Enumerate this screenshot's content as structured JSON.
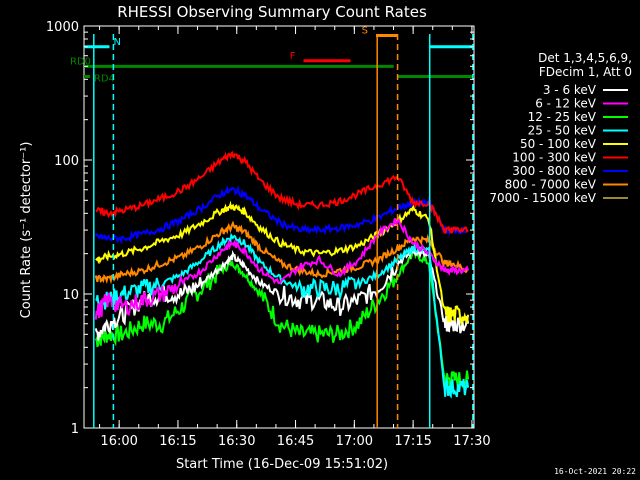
{
  "chart_data": {
    "type": "line",
    "title": "RHESSI Observing Summary Count Rates",
    "xlabel": "Start Time (16-Dec-09 15:51:02)",
    "ylabel": "Count Rate (s⁻¹ detector⁻¹)",
    "x_unit": "minutes after 15:51:02",
    "xlim": [
      0,
      99.5
    ],
    "ylim": [
      1,
      1000
    ],
    "yscale": "log",
    "x_ticks": [
      {
        "value": 8.97,
        "label": "16:00"
      },
      {
        "value": 23.97,
        "label": "16:15"
      },
      {
        "value": 38.97,
        "label": "16:30"
      },
      {
        "value": 53.97,
        "label": "16:45"
      },
      {
        "value": 68.97,
        "label": "17:00"
      },
      {
        "value": 83.97,
        "label": "17:15"
      },
      {
        "value": 98.97,
        "label": "17:30"
      }
    ],
    "y_ticks": [
      {
        "value": 1,
        "label": "1"
      },
      {
        "value": 10,
        "label": "10"
      },
      {
        "value": 100,
        "label": "100"
      },
      {
        "value": 1000,
        "label": "1000"
      }
    ],
    "legend_header": [
      "Det 1,3,4,5,6,9,",
      "FDecim 1, Att 0"
    ],
    "legend_placement": "right",
    "timestamp": "16-Oct-2021 20:22",
    "series": [
      {
        "name": "3 - 6 keV",
        "color": "#ffffff",
        "x": [
          3,
          6,
          10,
          15,
          20,
          25,
          30,
          35,
          38,
          41,
          45,
          50,
          55,
          60,
          65,
          70,
          75,
          80,
          84,
          88,
          92,
          94,
          98
        ],
        "values": [
          5,
          6,
          7,
          9,
          10,
          10,
          12,
          16,
          19,
          16,
          12,
          10,
          9,
          9,
          8,
          9,
          11,
          17,
          21,
          19,
          6,
          6,
          6
        ]
      },
      {
        "name": "6 - 12 keV",
        "color": "#ff00ff",
        "x": [
          3,
          6,
          10,
          15,
          20,
          25,
          30,
          35,
          38,
          41,
          45,
          50,
          55,
          60,
          65,
          70,
          75,
          80,
          84,
          88,
          92,
          94,
          98
        ],
        "values": [
          7,
          9,
          8,
          9,
          10,
          12,
          15,
          21,
          24,
          21,
          15,
          12,
          16,
          18,
          14,
          18,
          28,
          36,
          24,
          20,
          15,
          15,
          15
        ]
      },
      {
        "name": "12 - 25 keV",
        "color": "#00ff00",
        "x": [
          3,
          6,
          10,
          15,
          20,
          25,
          30,
          35,
          38,
          41,
          45,
          50,
          55,
          60,
          65,
          70,
          75,
          80,
          84,
          88,
          92,
          94,
          98
        ],
        "values": [
          4.5,
          5,
          5,
          6,
          6,
          8,
          11,
          15,
          17,
          14,
          10,
          6,
          5,
          5,
          5,
          6,
          9,
          14,
          20,
          17,
          2.3,
          2.3,
          2.3
        ]
      },
      {
        "name": "25 - 50 keV",
        "color": "#00ffff",
        "x": [
          3,
          6,
          10,
          15,
          20,
          25,
          30,
          35,
          38,
          41,
          45,
          50,
          55,
          60,
          65,
          70,
          75,
          80,
          84,
          88,
          92,
          94,
          98
        ],
        "values": [
          9,
          9,
          10,
          11,
          12,
          14,
          18,
          24,
          27,
          24,
          17,
          13,
          11,
          11,
          11,
          12,
          14,
          18,
          22,
          21,
          2,
          2,
          2
        ]
      },
      {
        "name": "50 - 100 keV",
        "color": "#ffff00",
        "x": [
          3,
          6,
          10,
          15,
          20,
          25,
          30,
          35,
          38,
          41,
          45,
          50,
          55,
          60,
          65,
          70,
          75,
          80,
          84,
          88,
          92,
          94,
          98
        ],
        "values": [
          18,
          19,
          20,
          22,
          25,
          28,
          34,
          42,
          45,
          41,
          31,
          24,
          21,
          20,
          21,
          23,
          28,
          35,
          43,
          36,
          7,
          7,
          7
        ]
      },
      {
        "name": "100 - 300 keV",
        "color": "#ff0000",
        "x": [
          3,
          6,
          10,
          15,
          20,
          25,
          30,
          35,
          38,
          41,
          45,
          50,
          55,
          60,
          65,
          70,
          75,
          80,
          84,
          88,
          92,
          94,
          98
        ],
        "values": [
          42,
          40,
          42,
          46,
          52,
          60,
          75,
          100,
          112,
          98,
          70,
          52,
          46,
          46,
          49,
          56,
          65,
          75,
          48,
          48,
          30,
          30,
          30
        ]
      },
      {
        "name": "300 - 800 keV",
        "color": "#0000ff",
        "x": [
          3,
          6,
          10,
          15,
          20,
          25,
          30,
          35,
          38,
          41,
          45,
          50,
          55,
          60,
          65,
          70,
          75,
          80,
          84,
          88,
          92,
          94,
          98
        ],
        "values": [
          27,
          26,
          26,
          28,
          31,
          36,
          44,
          56,
          60,
          55,
          43,
          34,
          30,
          30,
          31,
          33,
          37,
          44,
          48,
          48,
          30,
          30,
          30
        ]
      },
      {
        "name": "800 - 7000 keV",
        "color": "#ff8800",
        "x": [
          3,
          6,
          10,
          15,
          20,
          25,
          30,
          35,
          38,
          41,
          45,
          50,
          55,
          60,
          65,
          70,
          75,
          80,
          84,
          88,
          92,
          94,
          98
        ],
        "values": [
          13,
          13,
          14,
          15,
          17,
          19,
          23,
          29,
          32,
          29,
          22,
          17,
          15,
          14,
          15,
          16,
          18,
          22,
          26,
          25,
          17,
          17,
          15
        ]
      },
      {
        "name": "7000 - 15000 keV",
        "color": "#9a8a32",
        "x": [],
        "values": []
      }
    ],
    "annotations": [
      {
        "label": "N",
        "color": "#00ffff",
        "x_start": 0,
        "x_end": 6.5,
        "y": 700
      },
      {
        "label": "N",
        "color": "#00ffff",
        "x_start": 88,
        "x_end": 99.5,
        "y": 700
      },
      {
        "label": "F",
        "color": "#ff0000",
        "x_start": 56,
        "x_end": 68,
        "y": 550
      },
      {
        "label": "S",
        "color": "#ff8800",
        "x_start": 74.5,
        "x_end": 80,
        "y": 850
      },
      {
        "label": "RD0",
        "color": "#008800",
        "x_start": 0,
        "x_end": 79,
        "y": 500
      },
      {
        "label": "RD0",
        "color": "#008800",
        "x_start": 80,
        "x_end": 99.5,
        "y": 420
      },
      {
        "label": "RD4",
        "color": "#008800",
        "x_start": 0,
        "x_end": 1.5,
        "y": 420
      }
    ],
    "vertical_lines": [
      {
        "x": 2.5,
        "color": "#00ffff",
        "style": "solid"
      },
      {
        "x": 7.5,
        "color": "#00ffff",
        "style": "dashed"
      },
      {
        "x": 74.8,
        "color": "#ff8800",
        "style": "solid"
      },
      {
        "x": 80.0,
        "color": "#ff8800",
        "style": "dashed"
      },
      {
        "x": 88.2,
        "color": "#00ffff",
        "style": "solid"
      },
      {
        "x": 99.2,
        "color": "#00ffff",
        "style": "dashed"
      }
    ],
    "grid": false
  }
}
